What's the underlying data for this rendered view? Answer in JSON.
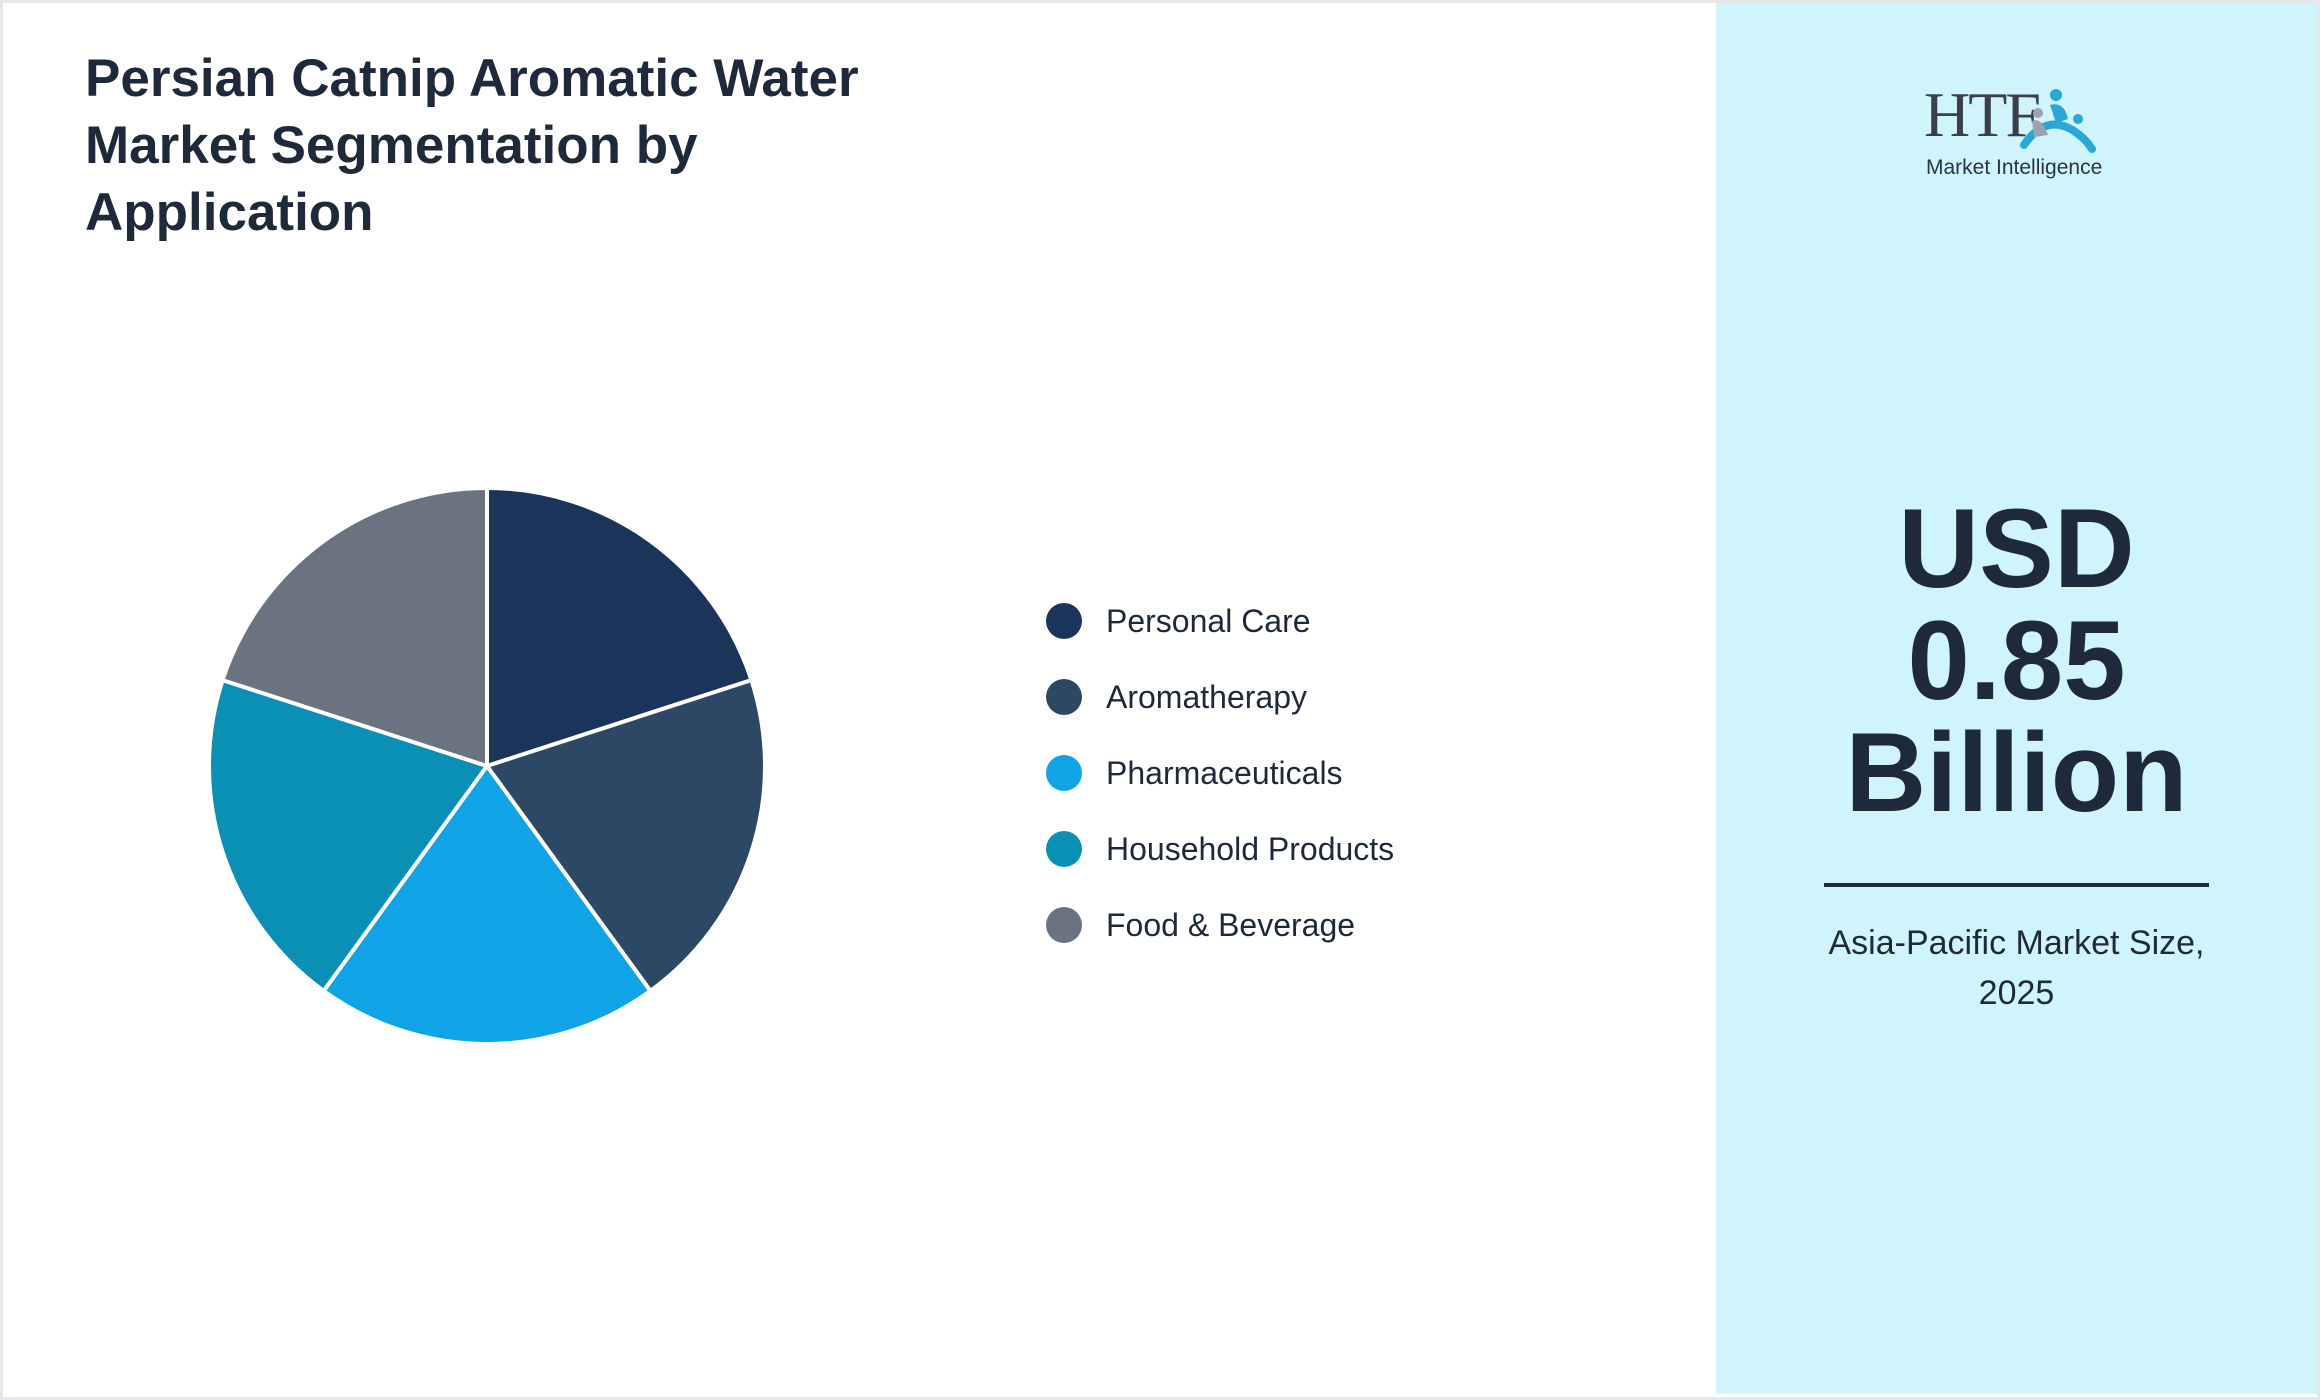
{
  "title": "Persian Catnip Aromatic Water Market Segmentation by Application",
  "chart_data": {
    "type": "pie",
    "categories": [
      "Personal Care",
      "Aromatherapy",
      "Pharmaceuticals",
      "Household Products",
      "Food & Beverage"
    ],
    "values": [
      20,
      20,
      20,
      20,
      20
    ],
    "colors": [
      "#1b355a",
      "#2c4864",
      "#10a4e6",
      "#0a90b4",
      "#6b7280"
    ],
    "legend_position": "right"
  },
  "panel": {
    "logo_brand": "HTF",
    "logo_tagline": "Market Intelligence",
    "value_line1": "USD",
    "value_line2": "0.85",
    "value_line3": "Billion",
    "caption_line1": "Asia-Pacific Market Size,",
    "caption_line2": "2025",
    "background_color": "#cff4fc"
  }
}
